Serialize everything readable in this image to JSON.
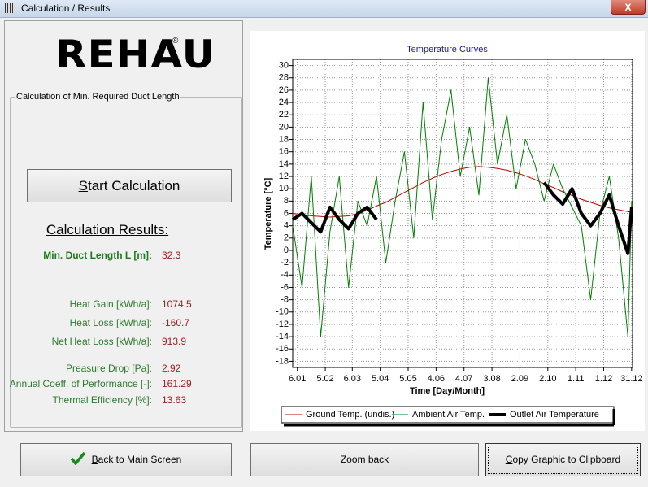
{
  "window": {
    "title": "Calculation / Results",
    "close": "X"
  },
  "logo": {
    "text": "REHAU",
    "mark": "®"
  },
  "group": {
    "title": "Calculation of Min. Required Duct Length"
  },
  "buttons": {
    "start": "Start Calculation",
    "back": "Back to Main Screen",
    "zoom": "Zoom back",
    "copy": "Copy Graphic to Clipboard"
  },
  "results": {
    "heading": "Calculation Results:",
    "items": [
      {
        "label": "Min. Duct Length L [m]:",
        "value": 32.3
      },
      {
        "label": "Heat Gain [kWh/a]:",
        "value": 1074.5
      },
      {
        "label": "Heat Loss [kWh/a]:",
        "value": -160.7
      },
      {
        "label": "Net Heat Loss [kWh/a]:",
        "value": 913.9
      },
      {
        "label": "Preasure Drop [Pa]:",
        "value": 2.92
      },
      {
        "label": "Annual Coeff. of Performance [-]:",
        "value": 161.29
      },
      {
        "label": "Thermal Efficiency [%]:",
        "value": 13.63
      }
    ]
  },
  "chart_data": {
    "type": "line",
    "title": "Temperature Curves",
    "x_label": "Time [Day/Month]",
    "y_label": "Temperature [°C]",
    "x": [
      1,
      11,
      21,
      31,
      41,
      51,
      61,
      71,
      81,
      91,
      101,
      111,
      121,
      131,
      141,
      151,
      161,
      171,
      181,
      191,
      201,
      211,
      221,
      231,
      241,
      251,
      261,
      271,
      281,
      291,
      301,
      311,
      321,
      331,
      341,
      351,
      361,
      365
    ],
    "series": [
      {
        "name": "Ground Temp. (undis.)",
        "color": "#c00000",
        "line_width": 1,
        "values": [
          6.0,
          5.8,
          5.6,
          5.5,
          5.4,
          5.5,
          5.6,
          6.0,
          6.5,
          7.2,
          7.8,
          8.6,
          9.4,
          10.2,
          11.0,
          11.7,
          12.3,
          12.8,
          13.2,
          13.5,
          13.6,
          13.5,
          13.3,
          13.0,
          12.6,
          12.1,
          11.5,
          10.8,
          10.2,
          9.5,
          8.9,
          8.3,
          7.8,
          7.3,
          6.9,
          6.6,
          6.3,
          6.2
        ]
      },
      {
        "name": "Ambient Air Temp.",
        "color": "#008000",
        "line_width": 1,
        "values": [
          4,
          -6,
          12,
          -14,
          3,
          12,
          -6,
          8,
          4,
          12,
          -2,
          8,
          16,
          2,
          24,
          5,
          18,
          26,
          12,
          20,
          9,
          28,
          14,
          22,
          10,
          18,
          14,
          8,
          14,
          10,
          7,
          4,
          -8,
          6,
          12,
          2,
          -14,
          8
        ]
      },
      {
        "name": "Outlet Air Temperature",
        "color": "#000000",
        "line_width": 4,
        "values": [
          5,
          6,
          4.5,
          3,
          7,
          5,
          3.5,
          6,
          7,
          5,
          null,
          null,
          null,
          null,
          null,
          null,
          null,
          null,
          null,
          null,
          null,
          null,
          null,
          null,
          null,
          null,
          null,
          11,
          9,
          7.5,
          10,
          6,
          4,
          6,
          9,
          4,
          -0.5,
          7
        ]
      }
    ],
    "xlim": [
      1,
      366
    ],
    "ylim": [
      -19,
      31
    ],
    "xticks": [
      {
        "value": 6,
        "label": "6.01"
      },
      {
        "value": 36,
        "label": "5.02"
      },
      {
        "value": 65,
        "label": "6.03"
      },
      {
        "value": 95,
        "label": "5.04"
      },
      {
        "value": 125,
        "label": "5.05"
      },
      {
        "value": 155,
        "label": "4.06"
      },
      {
        "value": 185,
        "label": "4.07"
      },
      {
        "value": 215,
        "label": "3.08"
      },
      {
        "value": 245,
        "label": "2.09"
      },
      {
        "value": 275,
        "label": "2.10"
      },
      {
        "value": 305,
        "label": "1.11"
      },
      {
        "value": 335,
        "label": "1.12"
      },
      {
        "value": 365,
        "label": "31.12"
      }
    ],
    "yticks": [
      -18,
      -16,
      -14,
      -12,
      -10,
      -8,
      -6,
      -4,
      -2,
      0,
      2,
      4,
      6,
      8,
      10,
      12,
      14,
      16,
      18,
      20,
      22,
      24,
      26,
      28,
      30
    ],
    "grid": true
  }
}
